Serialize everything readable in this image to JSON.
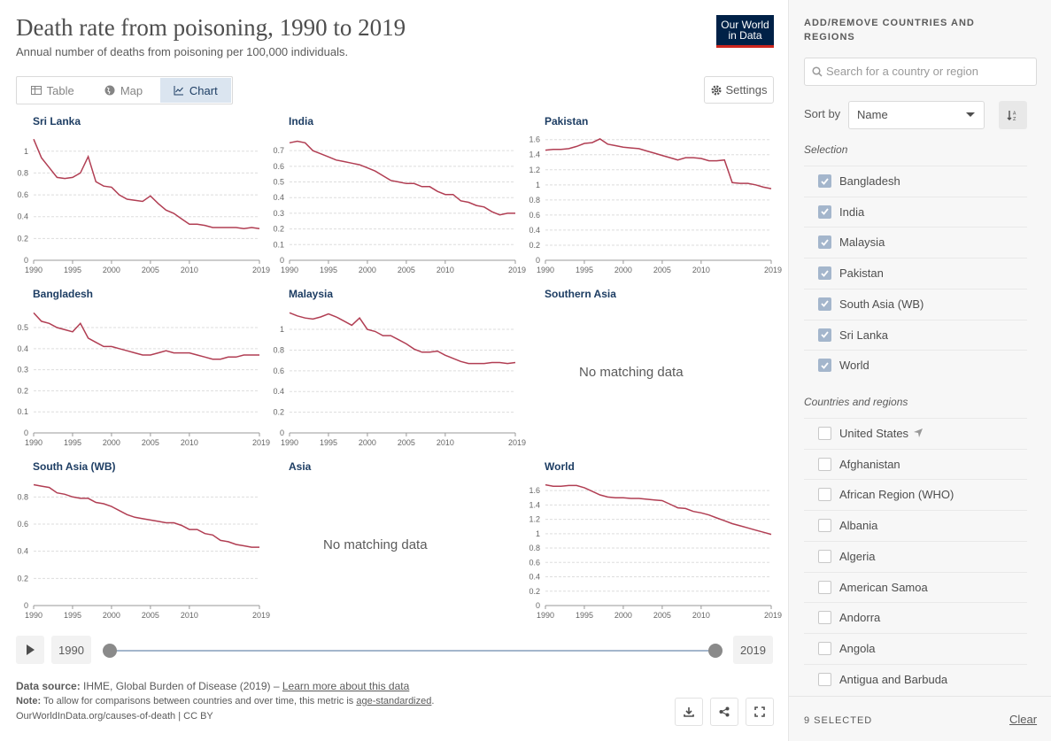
{
  "header": {
    "title": "Death rate from poisoning, 1990 to 2019",
    "subtitle": "Annual number of deaths from poisoning per 100,000 individuals.",
    "logo_line1": "Our World",
    "logo_line2": "in Data"
  },
  "tabs": [
    {
      "label": "Table",
      "icon": "table-icon",
      "active": false
    },
    {
      "label": "Map",
      "icon": "globe-icon",
      "active": false
    },
    {
      "label": "Chart",
      "icon": "line-chart-icon",
      "active": true
    }
  ],
  "settings_label": "Settings",
  "no_data_text": "No matching data",
  "chart_data": [
    {
      "type": "line",
      "title": "Sri Lanka",
      "x": [
        1990,
        1991,
        1992,
        1993,
        1994,
        1995,
        1996,
        1997,
        1998,
        1999,
        2000,
        2001,
        2002,
        2003,
        2004,
        2005,
        2006,
        2007,
        2008,
        2009,
        2010,
        2011,
        2012,
        2013,
        2014,
        2015,
        2016,
        2017,
        2018,
        2019
      ],
      "values": [
        1.11,
        0.94,
        0.85,
        0.76,
        0.75,
        0.76,
        0.8,
        0.95,
        0.72,
        0.68,
        0.67,
        0.6,
        0.56,
        0.55,
        0.54,
        0.59,
        0.52,
        0.46,
        0.43,
        0.38,
        0.33,
        0.33,
        0.32,
        0.3,
        0.3,
        0.3,
        0.3,
        0.29,
        0.3,
        0.29
      ],
      "yticks": [
        "0",
        "0.2",
        "0.4",
        "0.6",
        "0.8",
        "1"
      ],
      "ymax": 1.12
    },
    {
      "type": "line",
      "title": "India",
      "x": [
        1990,
        1991,
        1992,
        1993,
        1994,
        1995,
        1996,
        1997,
        1998,
        1999,
        2000,
        2001,
        2002,
        2003,
        2004,
        2005,
        2006,
        2007,
        2008,
        2009,
        2010,
        2011,
        2012,
        2013,
        2014,
        2015,
        2016,
        2017,
        2018,
        2019
      ],
      "values": [
        0.75,
        0.76,
        0.75,
        0.7,
        0.68,
        0.66,
        0.64,
        0.63,
        0.62,
        0.61,
        0.59,
        0.57,
        0.54,
        0.51,
        0.5,
        0.49,
        0.49,
        0.47,
        0.47,
        0.44,
        0.42,
        0.42,
        0.38,
        0.37,
        0.35,
        0.34,
        0.31,
        0.29,
        0.3,
        0.3
      ],
      "yticks": [
        "0",
        "0.1",
        "0.2",
        "0.3",
        "0.4",
        "0.5",
        "0.6",
        "0.7"
      ],
      "ymax": 0.78
    },
    {
      "type": "line",
      "title": "Pakistan",
      "x": [
        1990,
        1991,
        1992,
        1993,
        1994,
        1995,
        1996,
        1997,
        1998,
        1999,
        2000,
        2001,
        2002,
        2003,
        2004,
        2005,
        2006,
        2007,
        2008,
        2009,
        2010,
        2011,
        2012,
        2013,
        2014,
        2015,
        2016,
        2017,
        2018,
        2019
      ],
      "values": [
        1.46,
        1.47,
        1.47,
        1.48,
        1.51,
        1.55,
        1.56,
        1.61,
        1.54,
        1.52,
        1.5,
        1.49,
        1.48,
        1.45,
        1.42,
        1.39,
        1.36,
        1.33,
        1.36,
        1.36,
        1.35,
        1.32,
        1.32,
        1.33,
        1.03,
        1.02,
        1.02,
        1.0,
        0.97,
        0.95
      ],
      "yticks": [
        "0",
        "0.2",
        "0.4",
        "0.6",
        "0.8",
        "1",
        "1.2",
        "1.4",
        "1.6"
      ],
      "ymax": 1.62
    },
    {
      "type": "line",
      "title": "Bangladesh",
      "x": [
        1990,
        1991,
        1992,
        1993,
        1994,
        1995,
        1996,
        1997,
        1998,
        1999,
        2000,
        2001,
        2002,
        2003,
        2004,
        2005,
        2006,
        2007,
        2008,
        2009,
        2010,
        2011,
        2012,
        2013,
        2014,
        2015,
        2016,
        2017,
        2018,
        2019
      ],
      "values": [
        0.57,
        0.53,
        0.52,
        0.5,
        0.49,
        0.48,
        0.52,
        0.45,
        0.43,
        0.41,
        0.41,
        0.4,
        0.39,
        0.38,
        0.37,
        0.37,
        0.38,
        0.39,
        0.38,
        0.38,
        0.38,
        0.37,
        0.36,
        0.35,
        0.35,
        0.36,
        0.36,
        0.37,
        0.37,
        0.37
      ],
      "yticks": [
        "0",
        "0.1",
        "0.2",
        "0.3",
        "0.4",
        "0.5"
      ],
      "ymax": 0.58
    },
    {
      "type": "line",
      "title": "Malaysia",
      "x": [
        1990,
        1991,
        1992,
        1993,
        1994,
        1995,
        1996,
        1997,
        1998,
        1999,
        2000,
        2001,
        2002,
        2003,
        2004,
        2005,
        2006,
        2007,
        2008,
        2009,
        2010,
        2011,
        2012,
        2013,
        2014,
        2015,
        2016,
        2017,
        2018,
        2019
      ],
      "values": [
        1.16,
        1.13,
        1.11,
        1.1,
        1.12,
        1.15,
        1.12,
        1.08,
        1.04,
        1.11,
        1.0,
        0.98,
        0.94,
        0.94,
        0.9,
        0.86,
        0.81,
        0.78,
        0.78,
        0.79,
        0.75,
        0.72,
        0.69,
        0.67,
        0.67,
        0.67,
        0.68,
        0.68,
        0.67,
        0.68
      ],
      "yticks": [
        "0",
        "0.2",
        "0.4",
        "0.6",
        "0.8",
        "1"
      ],
      "ymax": 1.18
    },
    {
      "type": "line",
      "title": "Southern Asia",
      "x": [],
      "values": [],
      "yticks": [],
      "ymax": 1
    },
    {
      "type": "line",
      "title": "South Asia (WB)",
      "x": [
        1990,
        1991,
        1992,
        1993,
        1994,
        1995,
        1996,
        1997,
        1998,
        1999,
        2000,
        2001,
        2002,
        2003,
        2004,
        2005,
        2006,
        2007,
        2008,
        2009,
        2010,
        2011,
        2012,
        2013,
        2014,
        2015,
        2016,
        2017,
        2018,
        2019
      ],
      "values": [
        0.89,
        0.88,
        0.87,
        0.83,
        0.82,
        0.8,
        0.79,
        0.79,
        0.76,
        0.75,
        0.73,
        0.7,
        0.67,
        0.65,
        0.64,
        0.63,
        0.62,
        0.61,
        0.61,
        0.59,
        0.56,
        0.56,
        0.53,
        0.52,
        0.48,
        0.47,
        0.45,
        0.44,
        0.43,
        0.43
      ],
      "yticks": [
        "0",
        "0.2",
        "0.4",
        "0.6",
        "0.8"
      ],
      "ymax": 0.9
    },
    {
      "type": "line",
      "title": "Asia",
      "x": [],
      "values": [],
      "yticks": [],
      "ymax": 1
    },
    {
      "type": "line",
      "title": "World",
      "x": [
        1990,
        1991,
        1992,
        1993,
        1994,
        1995,
        1996,
        1997,
        1998,
        1999,
        2000,
        2001,
        2002,
        2003,
        2004,
        2005,
        2006,
        2007,
        2008,
        2009,
        2010,
        2011,
        2012,
        2013,
        2014,
        2015,
        2016,
        2017,
        2018,
        2019
      ],
      "values": [
        1.68,
        1.66,
        1.66,
        1.67,
        1.67,
        1.64,
        1.59,
        1.54,
        1.51,
        1.5,
        1.5,
        1.49,
        1.49,
        1.48,
        1.47,
        1.46,
        1.41,
        1.36,
        1.35,
        1.31,
        1.29,
        1.26,
        1.22,
        1.18,
        1.14,
        1.11,
        1.08,
        1.05,
        1.02,
        0.99
      ],
      "yticks": [
        "0",
        "0.2",
        "0.4",
        "0.6",
        "0.8",
        "1",
        "1.2",
        "1.4",
        "1.6"
      ],
      "ymax": 1.7
    }
  ],
  "xticks": [
    "1990",
    "1995",
    "2000",
    "2005",
    "2010",
    "2019"
  ],
  "line_color": "#b13e53",
  "timeline": {
    "start": "1990",
    "end": "2019"
  },
  "footer": {
    "source_label": "Data source:",
    "source_text": "IHME, Global Burden of Disease (2019) –",
    "learn_more": "Learn more about this data",
    "note_label": "Note:",
    "note_text": "To allow for comparisons between countries and over time, this metric is",
    "note_link": "age-standardized",
    "note_end": ".",
    "credit": "OurWorldInData.org/causes-of-death | CC BY"
  },
  "sidebar": {
    "heading": "ADD/REMOVE COUNTRIES AND REGIONS",
    "search_placeholder": "Search for a country or region",
    "sort_label": "Sort by",
    "sort_value": "Name",
    "selection_label": "Selection",
    "selected": [
      "Bangladesh",
      "India",
      "Malaysia",
      "Pakistan",
      "South Asia (WB)",
      "Sri Lanka",
      "World"
    ],
    "regions_label": "Countries and regions",
    "unselected": [
      "United States",
      "Afghanistan",
      "African Region (WHO)",
      "Albania",
      "Algeria",
      "American Samoa",
      "Andorra",
      "Angola",
      "Antigua and Barbuda"
    ],
    "selected_count": "9 SELECTED",
    "clear_label": "Clear"
  }
}
